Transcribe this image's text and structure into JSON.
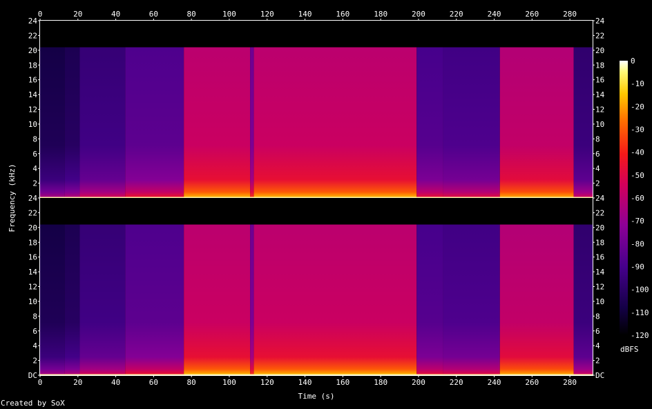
{
  "chart_data": {
    "type": "heatmap",
    "title": "",
    "xlabel": "Time (s)",
    "ylabel": "Frequency (kHz)",
    "colorbar_label": "dBFS",
    "x_range": [
      0,
      292
    ],
    "y_range_khz": [
      0,
      24
    ],
    "x_ticks": [
      0,
      20,
      40,
      60,
      80,
      100,
      120,
      140,
      160,
      180,
      200,
      220,
      240,
      260,
      280
    ],
    "y_ticks": [
      "DC",
      "2",
      "4",
      "6",
      "8",
      "10",
      "12",
      "14",
      "16",
      "18",
      "20",
      "22",
      "24"
    ],
    "colorbar_ticks": [
      "0",
      "-10",
      "-20",
      "-30",
      "-40",
      "-50",
      "-60",
      "-70",
      "-80",
      "-90",
      "-100",
      "-110",
      "-120"
    ],
    "colorbar_range_db": [
      -120,
      0
    ],
    "channels": 2,
    "cutoff_khz": 20.4,
    "segments": [
      {
        "t0": 0,
        "t1": 13,
        "level_db": -108
      },
      {
        "t0": 13,
        "t1": 21,
        "level_db": -105
      },
      {
        "t0": 21,
        "t1": 45,
        "level_db": -96
      },
      {
        "t0": 45,
        "t1": 76,
        "level_db": -88
      },
      {
        "t0": 76,
        "t1": 111,
        "level_db": -60
      },
      {
        "t0": 111,
        "t1": 113,
        "level_db": -80
      },
      {
        "t0": 113,
        "t1": 199,
        "level_db": -60
      },
      {
        "t0": 199,
        "t1": 213,
        "level_db": -90
      },
      {
        "t0": 213,
        "t1": 243,
        "level_db": -92
      },
      {
        "t0": 243,
        "t1": 282,
        "level_db": -62
      },
      {
        "t0": 282,
        "t1": 292,
        "level_db": -98
      }
    ]
  },
  "credit": "Created by SoX"
}
